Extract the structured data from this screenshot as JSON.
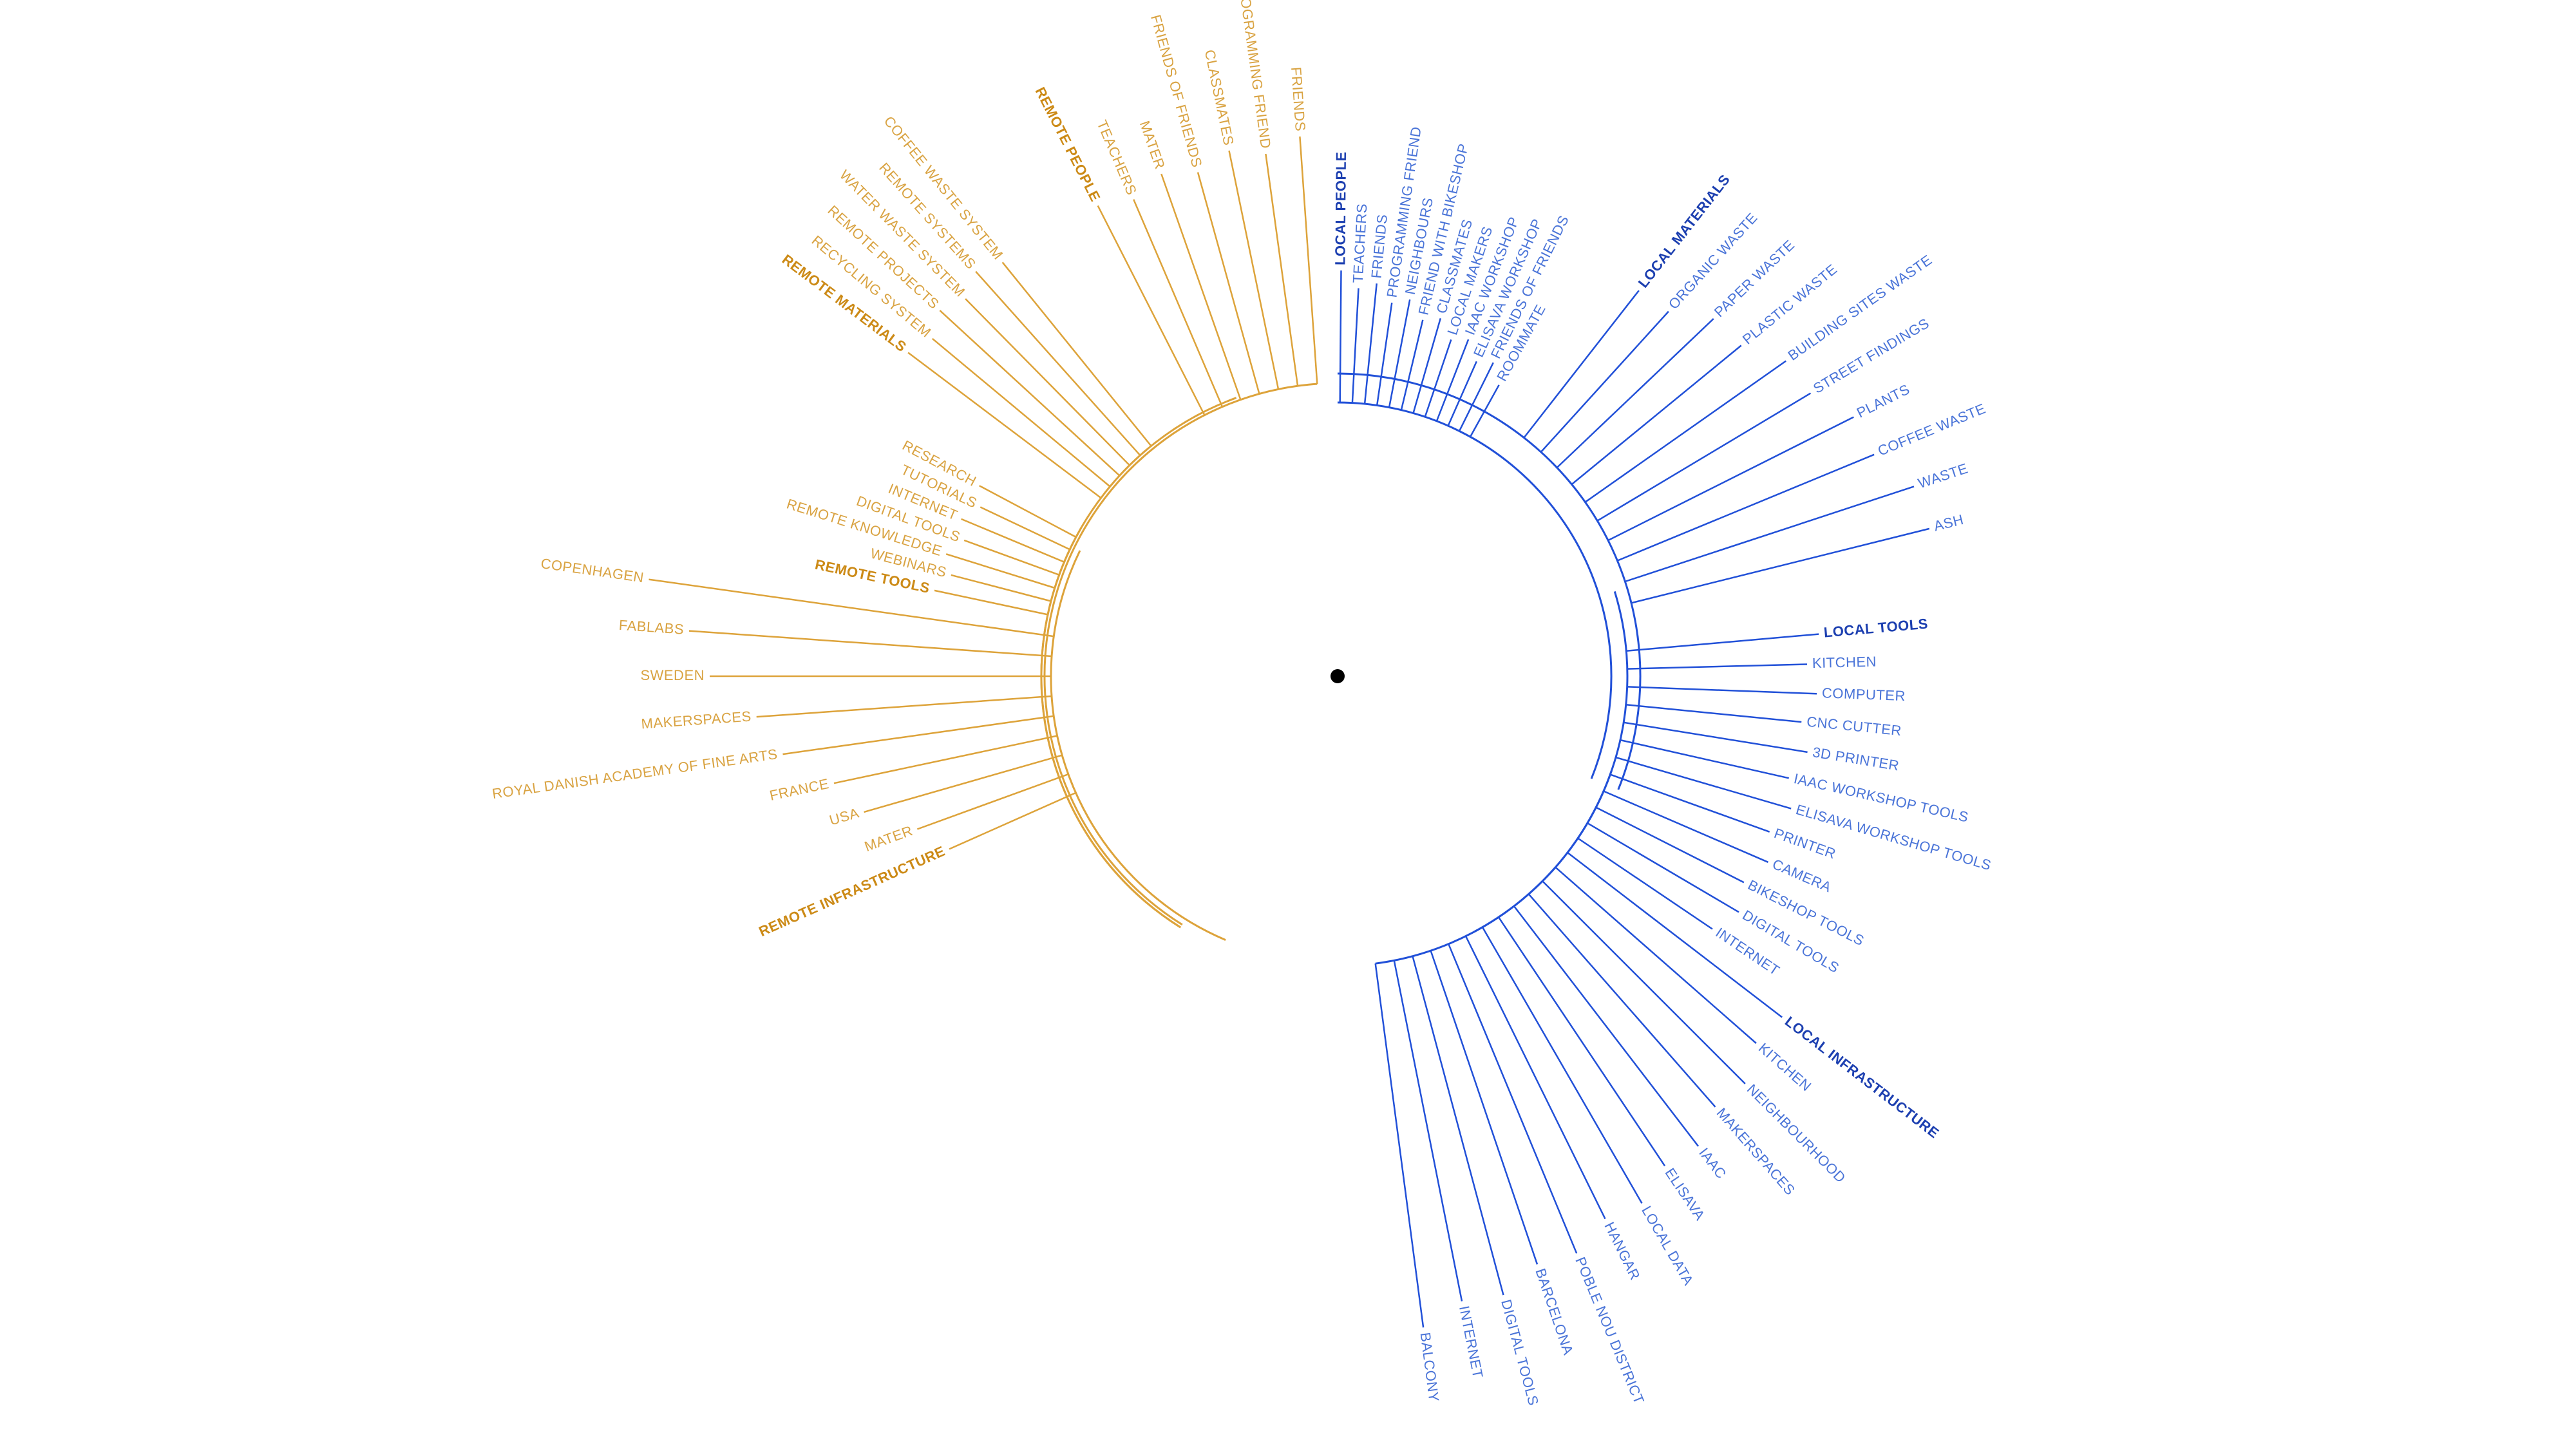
{
  "colors": {
    "local": "#2150d8",
    "local_text": "#4a74d8",
    "local_heading": "#1c3fb0",
    "remote": "#dda33a",
    "remote_text": "#d9a342",
    "remote_heading": "#cc8a16",
    "center": "#000000"
  },
  "diagram": {
    "groups": [
      {
        "name": "local-people",
        "side": "local",
        "heading": "LOCAL PEOPLE",
        "leaves": [
          "TEACHERS",
          "FRIENDS",
          "PROGRAMMING FRIEND",
          "NEIGHBOURS",
          "FRIEND WITH BIKESHOP",
          "CLASSMATES",
          "LOCAL MAKERS",
          "IAAC WORKSHOP",
          "ELISAVA WORKSHOP",
          "FRIENDS OF FRIENDS",
          "ROOMMATE"
        ]
      },
      {
        "name": "local-materials",
        "side": "local",
        "heading": "LOCAL MATERIALS",
        "leaves": [
          "ORGANIC WASTE",
          "PAPER WASTE",
          "PLASTIC WASTE",
          "BUILDING SITES WASTE",
          "STREET FINDINGS",
          "PLANTS",
          "COFFEE WASTE",
          "WASTE",
          "ASH"
        ]
      },
      {
        "name": "local-tools",
        "side": "local",
        "heading": "LOCAL TOOLS",
        "leaves": [
          "KITCHEN",
          "COMPUTER",
          "CNC CUTTER",
          "3D PRINTER",
          "IAAC WORKSHOP TOOLS",
          "ELISAVA WORKSHOP TOOLS",
          "PRINTER",
          "CAMERA",
          "BIKESHOP TOOLS",
          "DIGITAL TOOLS",
          "INTERNET"
        ]
      },
      {
        "name": "local-infrastructure",
        "side": "local",
        "heading": "LOCAL INFRASTRUCTURE",
        "leaves": [
          "KITCHEN",
          "NEIGHBOURHOOD",
          "MAKERSPACES",
          "IAAC",
          "ELISAVA",
          "LOCAL DATA",
          "HANGAR",
          "POBLE NOU DISTRICT",
          "BARCELONA",
          "DIGITAL TOOLS",
          "INTERNET",
          "BALCONY"
        ]
      },
      {
        "name": "remote-infrastructure",
        "side": "remote",
        "heading": "REMOTE INFRASTRUCTURE",
        "leaves": [
          "MATER",
          "USA",
          "FRANCE",
          "ROYAL DANISH ACADEMY OF FINE ARTS",
          "MAKERSPACES",
          "SWEDEN",
          "FABLABS",
          "COPENHAGEN"
        ]
      },
      {
        "name": "remote-tools",
        "side": "remote",
        "heading": "REMOTE TOOLS",
        "leaves": [
          "WEBINARS",
          "REMOTE KNOWLEDGE",
          "DIGITAL TOOLS",
          "INTERNET",
          "TUTORIALS",
          "RESEARCH"
        ]
      },
      {
        "name": "remote-materials",
        "side": "remote",
        "heading": "REMOTE MATERIALS",
        "leaves": [
          "RECYCLING SYSTEM",
          "REMOTE PROJECTS",
          "WATER WASTE SYSTEM",
          "REMOTE SYSTEMS",
          "COFFEE WASTE SYSTEM"
        ]
      },
      {
        "name": "remote-people",
        "side": "remote",
        "heading": "REMOTE PEOPLE",
        "leaves": [
          "TEACHERS",
          "MATER",
          "FRIENDS OF FRIENDS",
          "CLASSMATES",
          "PROGRAMMING FRIEND",
          "FRIENDS"
        ]
      }
    ]
  }
}
